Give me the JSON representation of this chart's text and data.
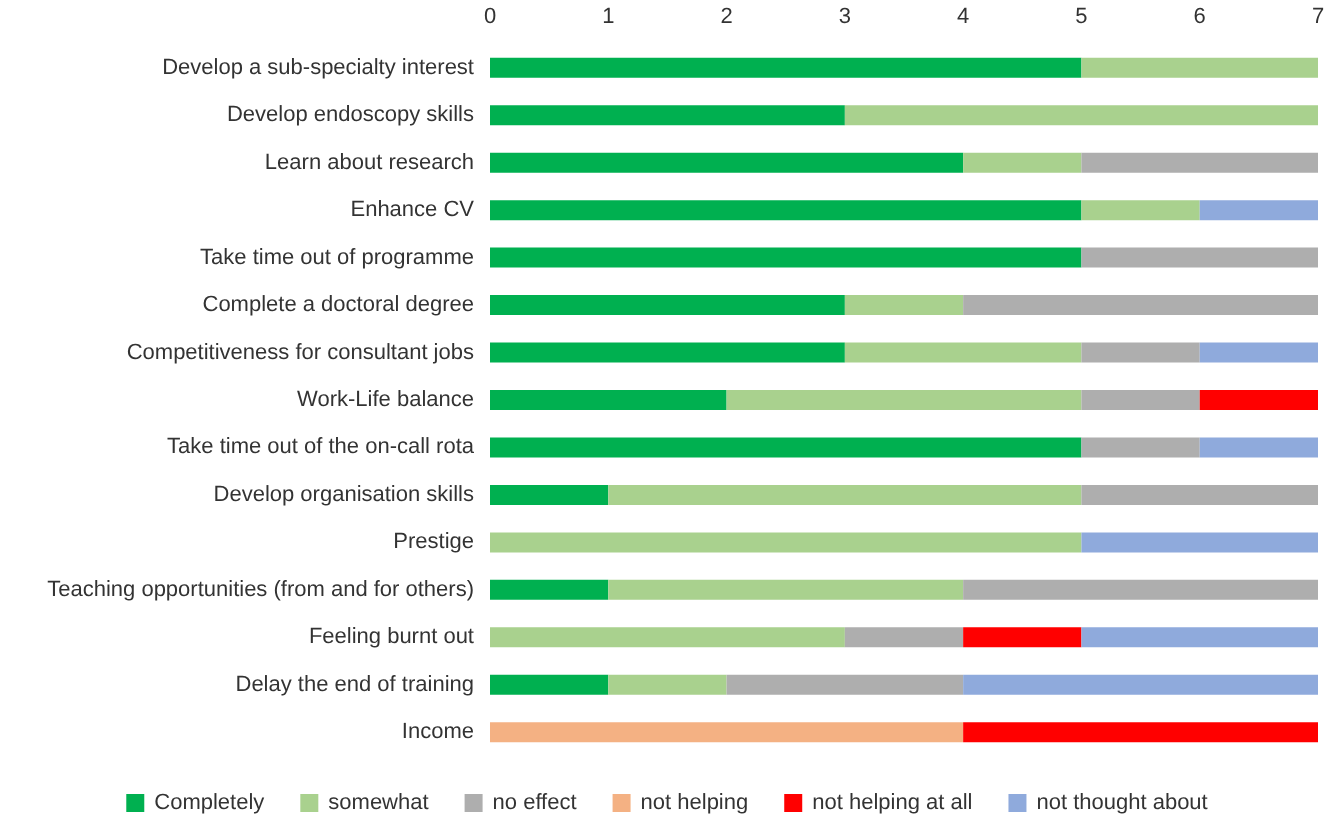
{
  "chart_data": {
    "type": "bar",
    "orientation": "horizontal",
    "stacked": true,
    "legend": "bottom",
    "grid": false,
    "categories": [
      "Develop a sub-specialty interest",
      "Develop endoscopy skills",
      "Learn about research",
      "Enhance CV",
      "Take time out of programme",
      "Complete a doctoral degree",
      "Competitiveness for consultant jobs",
      "Work-Life balance",
      "Take time out of the on-call rota",
      "Develop organisation skills",
      "Prestige",
      "Teaching opportunities (from and for others)",
      "Feeling burnt out",
      "Delay the end of training",
      "Income"
    ],
    "xlim": [
      0,
      7
    ],
    "xticks": [
      0,
      1,
      2,
      3,
      4,
      5,
      6,
      7
    ],
    "series": [
      {
        "name": "Completely",
        "color": "#00b050",
        "values": [
          5,
          3,
          4,
          5,
          5,
          3,
          3,
          2,
          5,
          1,
          0,
          1,
          0,
          1,
          0
        ]
      },
      {
        "name": "somewhat",
        "color": "#a9d18e",
        "values": [
          2,
          4,
          1,
          1,
          0,
          1,
          2,
          3,
          0,
          4,
          5,
          3,
          3,
          1,
          0
        ]
      },
      {
        "name": "no effect",
        "color": "#aeaeae",
        "values": [
          0,
          0,
          2,
          0,
          2,
          3,
          1,
          1,
          1,
          2,
          0,
          3,
          1,
          2,
          0
        ]
      },
      {
        "name": "not helping",
        "color": "#f4b183",
        "values": [
          0,
          0,
          0,
          0,
          0,
          0,
          0,
          0,
          0,
          0,
          0,
          0,
          0,
          0,
          4
        ]
      },
      {
        "name": "not helping at all",
        "color": "#ff0000",
        "values": [
          0,
          0,
          0,
          0,
          0,
          0,
          0,
          1,
          0,
          0,
          0,
          0,
          1,
          0,
          3
        ]
      },
      {
        "name": "not thought about",
        "color": "#8faadc",
        "values": [
          0,
          0,
          0,
          1,
          0,
          0,
          1,
          0,
          1,
          0,
          2,
          0,
          2,
          3,
          0
        ]
      }
    ]
  }
}
